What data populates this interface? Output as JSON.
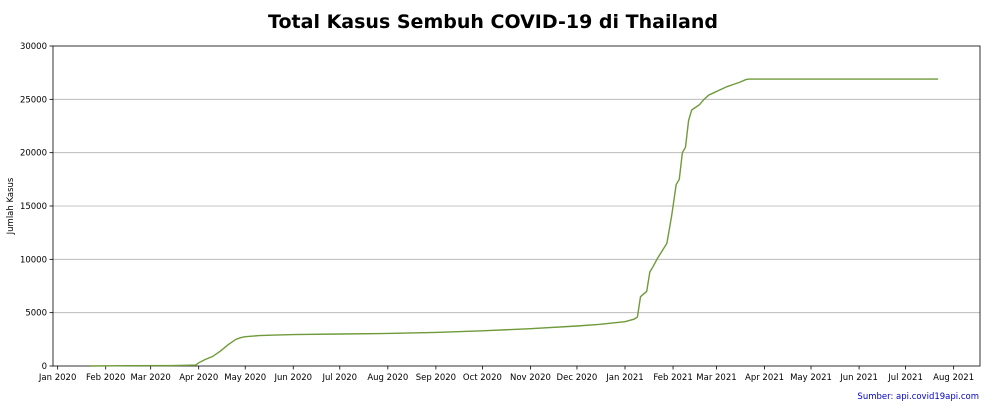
{
  "chart_data": {
    "type": "line",
    "title": "Total Kasus Sembuh COVID-19 di Thailand",
    "xlabel": "",
    "ylabel": "Jumlah Kasus",
    "source_note": "Sumber: api.covid19api.com",
    "ylim": [
      0,
      30000
    ],
    "xlim": [
      "2019-12-29",
      "2021-08-18"
    ],
    "y_ticks": [
      0,
      5000,
      10000,
      15000,
      20000,
      25000,
      30000
    ],
    "x_ticks": [
      {
        "date": "2020-01-01",
        "label": "Jan 2020"
      },
      {
        "date": "2020-02-01",
        "label": "Feb 2020"
      },
      {
        "date": "2020-03-01",
        "label": "Mar 2020"
      },
      {
        "date": "2020-04-01",
        "label": "Apr 2020"
      },
      {
        "date": "2020-05-01",
        "label": "May 2020"
      },
      {
        "date": "2020-06-01",
        "label": "Jun 2020"
      },
      {
        "date": "2020-07-01",
        "label": "Jul 2020"
      },
      {
        "date": "2020-08-01",
        "label": "Aug 2020"
      },
      {
        "date": "2020-09-01",
        "label": "Sep 2020"
      },
      {
        "date": "2020-10-01",
        "label": "Oct 2020"
      },
      {
        "date": "2020-11-01",
        "label": "Nov 2020"
      },
      {
        "date": "2020-12-01",
        "label": "Dec 2020"
      },
      {
        "date": "2021-01-01",
        "label": "Jan 2021"
      },
      {
        "date": "2021-02-01",
        "label": "Feb 2021"
      },
      {
        "date": "2021-03-01",
        "label": "Mar 2021"
      },
      {
        "date": "2021-04-01",
        "label": "Apr 2021"
      },
      {
        "date": "2021-05-01",
        "label": "May 2021"
      },
      {
        "date": "2021-06-01",
        "label": "Jun 2021"
      },
      {
        "date": "2021-07-01",
        "label": "Jul 2021"
      },
      {
        "date": "2021-08-01",
        "label": "Aug 2021"
      }
    ],
    "grid": "horizontal",
    "line_color": "#6e9a3a",
    "series": [
      {
        "x": [
          "2020-01-22",
          "2020-02-15",
          "2020-03-15",
          "2020-03-30",
          "2020-04-01",
          "2020-04-05",
          "2020-04-10",
          "2020-04-15",
          "2020-04-20",
          "2020-04-25",
          "2020-04-28",
          "2020-05-01",
          "2020-05-10",
          "2020-05-20",
          "2020-06-01",
          "2020-07-01",
          "2020-08-01",
          "2020-09-01",
          "2020-10-01",
          "2020-11-01",
          "2020-12-01",
          "2020-12-15",
          "2021-01-01",
          "2021-01-07",
          "2021-01-09",
          "2021-01-11",
          "2021-01-15",
          "2021-01-17",
          "2021-01-19",
          "2021-01-22",
          "2021-01-25",
          "2021-01-28",
          "2021-01-31",
          "2021-02-03",
          "2021-02-05",
          "2021-02-07",
          "2021-02-09",
          "2021-02-11",
          "2021-02-13",
          "2021-02-15",
          "2021-02-18",
          "2021-02-21",
          "2021-02-24",
          "2021-02-27",
          "2021-03-02",
          "2021-03-05",
          "2021-03-08",
          "2021-03-12",
          "2021-03-16",
          "2021-03-20",
          "2021-03-22",
          "2021-03-25",
          "2021-04-01",
          "2021-05-01",
          "2021-06-01",
          "2021-07-01",
          "2021-07-22"
        ],
        "y": [
          0,
          30,
          40,
          90,
          300,
          600,
          900,
          1400,
          2000,
          2500,
          2650,
          2750,
          2850,
          2900,
          2950,
          3000,
          3050,
          3150,
          3300,
          3500,
          3750,
          3900,
          4150,
          4400,
          4600,
          6500,
          7000,
          8800,
          9300,
          10100,
          10800,
          11500,
          14000,
          17000,
          17500,
          20000,
          20500,
          23000,
          24000,
          24200,
          24500,
          25000,
          25400,
          25600,
          25800,
          26000,
          26200,
          26400,
          26600,
          26850,
          26900,
          26900,
          26900,
          26900,
          26900,
          26900,
          26900
        ]
      }
    ]
  }
}
